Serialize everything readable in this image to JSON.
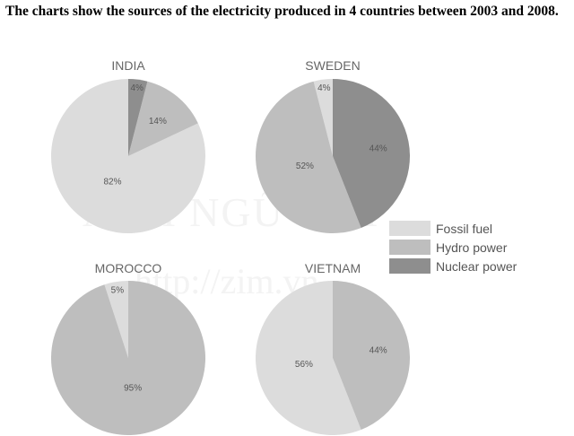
{
  "title": "The charts show the sources of the electricity produced in 4 countries between 2003 and 2008.",
  "watermark": {
    "main": "ANH NGỮ ZIM",
    "url": "http://zim.vn"
  },
  "legend": [
    {
      "name": "Fossil fuel",
      "color": "#dcdcdc"
    },
    {
      "name": "Hydro power",
      "color": "#bebebe"
    },
    {
      "name": "Nuclear power",
      "color": "#8e8e8e"
    }
  ],
  "chart_data": [
    {
      "type": "pie",
      "title": "INDIA",
      "categories": [
        "Fossil fuel",
        "Hydro power",
        "Nuclear power"
      ],
      "values": [
        82,
        14,
        4
      ],
      "labels": [
        "82%",
        "14%",
        "4%"
      ]
    },
    {
      "type": "pie",
      "title": "SWEDEN",
      "categories": [
        "Fossil fuel",
        "Hydro power",
        "Nuclear power"
      ],
      "values": [
        4,
        52,
        44
      ],
      "labels": [
        "4%",
        "52%",
        "44%"
      ]
    },
    {
      "type": "pie",
      "title": "MOROCCO",
      "categories": [
        "Fossil fuel",
        "Hydro power"
      ],
      "values": [
        5,
        95
      ],
      "labels": [
        "5%",
        "95%"
      ]
    },
    {
      "type": "pie",
      "title": "VIETNAM",
      "categories": [
        "Fossil fuel",
        "Hydro power"
      ],
      "values": [
        56,
        44
      ],
      "labels": [
        "56%",
        "44%"
      ]
    }
  ]
}
